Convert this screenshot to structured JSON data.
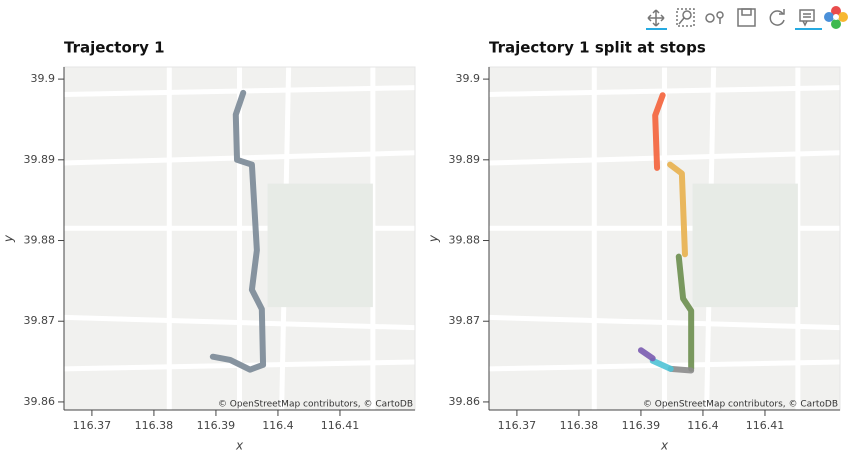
{
  "chart_data": [
    {
      "type": "line",
      "title": "Trajectory 1",
      "xlabel": "x",
      "ylabel": "y",
      "attribution": "© OpenStreetMap contributors, © CartoDB",
      "xlim": [
        116.3655,
        116.4221
      ],
      "ylim": [
        39.859,
        39.9015
      ],
      "xticks": [
        116.37,
        116.38,
        116.39,
        116.4,
        116.41
      ],
      "yticks": [
        39.86,
        39.87,
        39.88,
        39.89,
        39.9
      ],
      "series": [
        {
          "color": "#7a8896",
          "x": [
            116.3944,
            116.3932,
            116.3934,
            116.3958,
            116.3966,
            116.3958,
            116.3974,
            116.3976,
            116.3955,
            116.3923,
            116.3895
          ],
          "values": [
            39.8983,
            39.8956,
            39.89,
            39.8894,
            39.8788,
            39.8739,
            39.8715,
            39.8646,
            39.864,
            39.8652,
            39.8656
          ]
        }
      ]
    },
    {
      "type": "line",
      "title": "Trajectory 1 split at stops",
      "xlabel": "x",
      "ylabel": "y",
      "attribution": "© OpenStreetMap contributors, © CartoDB",
      "xlim": [
        116.3655,
        116.4221
      ],
      "ylim": [
        39.859,
        39.9015
      ],
      "xticks": [
        116.37,
        116.38,
        116.39,
        116.4,
        116.41
      ],
      "yticks": [
        39.86,
        39.87,
        39.88,
        39.89,
        39.9
      ],
      "series": [
        {
          "color": "#f4623a",
          "x": [
            116.3935,
            116.3923,
            116.3926
          ],
          "values": [
            39.898,
            39.8955,
            39.889
          ]
        },
        {
          "color": "#e8b04c",
          "x": [
            116.3947,
            116.3966,
            116.3971
          ],
          "values": [
            39.8894,
            39.8883,
            39.8783
          ]
        },
        {
          "color": "#6b8e4e",
          "x": [
            116.3961,
            116.3968,
            116.3981,
            116.3981
          ],
          "values": [
            39.878,
            39.8728,
            39.8713,
            39.8641
          ]
        },
        {
          "color": "#8c8c8c",
          "x": [
            116.3981,
            116.3948
          ],
          "values": [
            39.8639,
            39.8641
          ]
        },
        {
          "color": "#4fc3d6",
          "x": [
            116.3948,
            116.3919
          ],
          "values": [
            39.8641,
            39.8651
          ]
        },
        {
          "color": "#7a5bb0",
          "x": [
            116.3919,
            116.39
          ],
          "values": [
            39.8654,
            39.8664
          ]
        }
      ]
    }
  ]
}
